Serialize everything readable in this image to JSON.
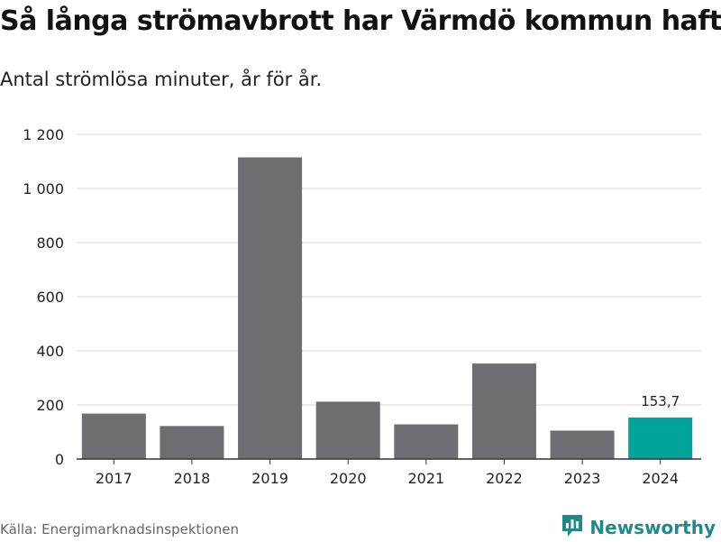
{
  "title": "Så långa strömavbrott har Värmdö kommun haft",
  "subtitle": "Antal strömlösa minuter, år för år.",
  "source": "Källa: Energimarknadsinspektionen",
  "brand": {
    "name": "Newsworthy",
    "icon": "newsworthy-logo-icon",
    "color": "#1f8a8a"
  },
  "colors": {
    "bar": "#6e6d72",
    "highlight": "#00a499",
    "grid": "#d9d9d9",
    "axis": "#333333"
  },
  "chart_data": {
    "type": "bar",
    "categories": [
      "2017",
      "2018",
      "2019",
      "2020",
      "2021",
      "2022",
      "2023",
      "2024"
    ],
    "values": [
      168,
      122,
      1115,
      212,
      128,
      353,
      105,
      153.7
    ],
    "highlight_index": 7,
    "data_labels": [
      null,
      null,
      null,
      null,
      null,
      null,
      null,
      "153,7"
    ],
    "ylim": [
      0,
      1200
    ],
    "yticks": [
      0,
      200,
      400,
      600,
      800,
      1000,
      1200
    ],
    "ytick_labels": [
      "0",
      "200",
      "400",
      "600",
      "800",
      "1 000",
      "1 200"
    ],
    "grid": true,
    "xlabel": "",
    "ylabel": ""
  }
}
